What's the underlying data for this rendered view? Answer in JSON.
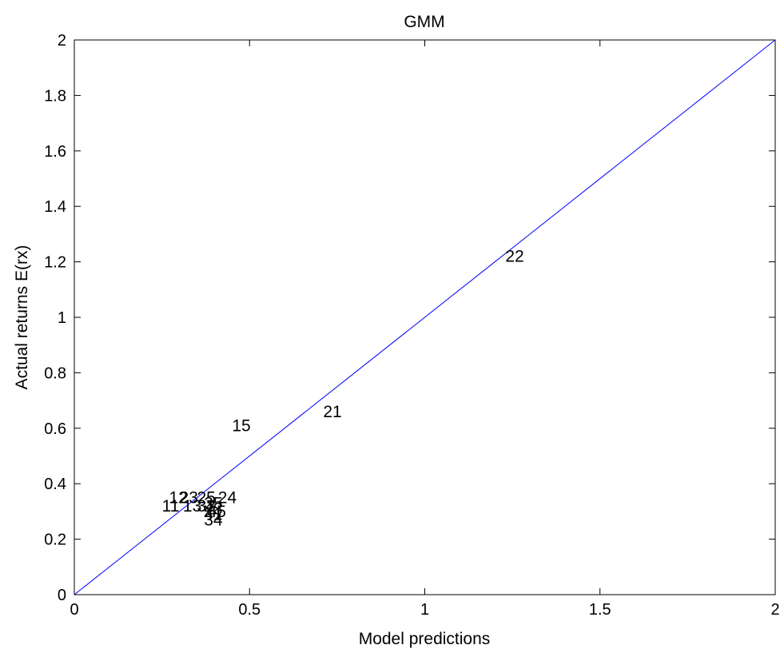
{
  "chart_data": {
    "type": "scatter",
    "title": "GMM",
    "xlabel": "Model predictions",
    "ylabel": "Actual returns E(rx)",
    "xlim": [
      0,
      2
    ],
    "ylim": [
      0,
      2
    ],
    "xticks": [
      "0",
      "0.5",
      "1",
      "1.5",
      "2"
    ],
    "xtick_values": [
      0,
      0.5,
      1,
      1.5,
      2
    ],
    "yticks": [
      "0",
      "0.2",
      "0.4",
      "0.6",
      "0.8",
      "1",
      "1.2",
      "1.4",
      "1.6",
      "1.8",
      "2"
    ],
    "ytick_values": [
      0,
      0.2,
      0.4,
      0.6,
      0.8,
      1,
      1.2,
      1.4,
      1.6,
      1.8,
      2
    ],
    "grid": false,
    "reference_line": {
      "x": [
        0,
        2
      ],
      "y": [
        0,
        2
      ],
      "color": "#0000ff"
    },
    "points": [
      {
        "label": "22",
        "x": 1.23,
        "y": 1.22
      },
      {
        "label": "21",
        "x": 0.71,
        "y": 0.66
      },
      {
        "label": "15",
        "x": 0.45,
        "y": 0.61
      },
      {
        "label": "11",
        "x": 0.25,
        "y": 0.32
      },
      {
        "label": "12",
        "x": 0.27,
        "y": 0.35
      },
      {
        "label": "13",
        "x": 0.31,
        "y": 0.32
      },
      {
        "label": "23",
        "x": 0.3,
        "y": 0.35
      },
      {
        "label": "33",
        "x": 0.35,
        "y": 0.32
      },
      {
        "label": "25",
        "x": 0.35,
        "y": 0.35
      },
      {
        "label": "24",
        "x": 0.41,
        "y": 0.35
      },
      {
        "label": "35",
        "x": 0.37,
        "y": 0.33
      },
      {
        "label": "43",
        "x": 0.37,
        "y": 0.31
      },
      {
        "label": "45",
        "x": 0.38,
        "y": 0.3
      },
      {
        "label": "41",
        "x": 0.37,
        "y": 0.29
      },
      {
        "label": "34",
        "x": 0.37,
        "y": 0.27
      }
    ],
    "colors": {
      "line": "#0000ff",
      "axes": "#000000",
      "background": "#ffffff"
    }
  }
}
